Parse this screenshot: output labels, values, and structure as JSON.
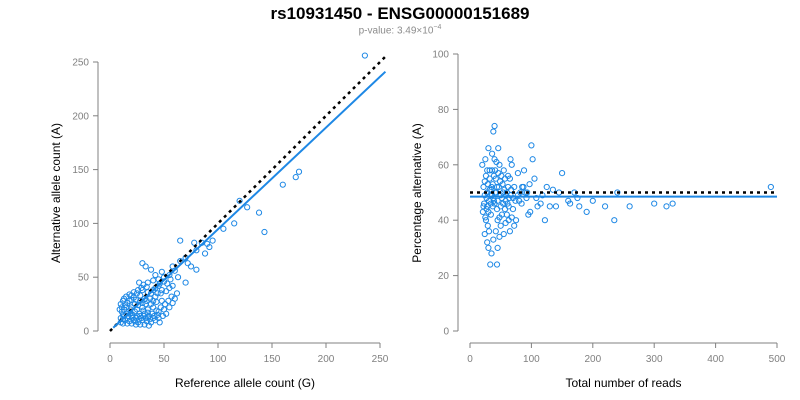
{
  "title": "rs10931450 - ENSG00000151689",
  "subtitle": {
    "prefix": "p-value: 3.49×10",
    "exponent": "−4"
  },
  "colors": {
    "series": "#1e88e5",
    "axis": "#808080",
    "reference_line": "#000000"
  },
  "chart_data": [
    {
      "type": "scatter",
      "xlabel": "Reference allele count (G)",
      "ylabel": "Alternative allele count (A)",
      "xlim": [
        0,
        250
      ],
      "ylim": [
        0,
        250
      ],
      "xticks": [
        "0",
        "50",
        "100",
        "150",
        "200",
        "250"
      ],
      "yticks": [
        "0",
        "50",
        "100",
        "150",
        "200",
        "250"
      ],
      "reference_line": {
        "style": "dotted",
        "color": "#000000",
        "from": [
          0,
          0
        ],
        "to": [
          255,
          255
        ]
      },
      "fit_line": {
        "style": "solid",
        "color": "#1e88e5",
        "from": [
          3,
          3
        ],
        "to": [
          255,
          241
        ]
      },
      "points": [
        [
          236,
          256
        ],
        [
          175,
          148
        ],
        [
          172,
          143
        ],
        [
          160,
          136
        ],
        [
          120,
          121
        ],
        [
          127,
          115
        ],
        [
          138,
          110
        ],
        [
          115,
          100
        ],
        [
          143,
          92
        ],
        [
          105,
          95
        ],
        [
          90,
          81
        ],
        [
          95,
          84
        ],
        [
          85,
          82
        ],
        [
          92,
          78
        ],
        [
          78,
          82
        ],
        [
          65,
          84
        ],
        [
          80,
          75
        ],
        [
          88,
          72
        ],
        [
          70,
          68
        ],
        [
          72,
          63
        ],
        [
          65,
          65
        ],
        [
          58,
          60
        ],
        [
          60,
          56
        ],
        [
          55,
          52
        ],
        [
          50,
          50
        ],
        [
          45,
          48
        ],
        [
          40,
          47
        ],
        [
          35,
          45
        ],
        [
          30,
          63
        ],
        [
          33,
          60
        ],
        [
          38,
          57
        ],
        [
          42,
          52
        ],
        [
          48,
          55
        ],
        [
          63,
          50
        ],
        [
          75,
          60
        ],
        [
          80,
          57
        ],
        [
          70,
          45
        ],
        [
          58,
          42
        ],
        [
          55,
          40
        ],
        [
          45,
          42
        ],
        [
          40,
          38
        ],
        [
          35,
          36
        ],
        [
          30,
          38
        ],
        [
          25,
          35
        ],
        [
          20,
          33
        ],
        [
          22,
          31
        ],
        [
          28,
          33
        ],
        [
          32,
          30
        ],
        [
          37,
          30
        ],
        [
          42,
          32
        ],
        [
          47,
          35
        ],
        [
          52,
          37
        ],
        [
          33,
          25
        ],
        [
          38,
          25
        ],
        [
          43,
          27
        ],
        [
          48,
          28
        ],
        [
          28,
          28
        ],
        [
          23,
          25
        ],
        [
          18,
          28
        ],
        [
          15,
          22
        ],
        [
          12,
          28
        ],
        [
          10,
          25
        ],
        [
          13,
          20
        ],
        [
          17,
          18
        ],
        [
          20,
          22
        ],
        [
          25,
          20
        ],
        [
          30,
          22
        ],
        [
          35,
          20
        ],
        [
          40,
          22
        ],
        [
          45,
          18
        ],
        [
          50,
          20
        ],
        [
          28,
          14
        ],
        [
          32,
          16
        ],
        [
          36,
          14
        ],
        [
          40,
          12
        ],
        [
          44,
          15
        ],
        [
          24,
          12
        ],
        [
          20,
          14
        ],
        [
          16,
          12
        ],
        [
          12,
          15
        ],
        [
          10,
          12
        ],
        [
          14,
          10
        ],
        [
          18,
          9
        ],
        [
          22,
          10
        ],
        [
          26,
          8
        ],
        [
          30,
          10
        ],
        [
          34,
          9
        ],
        [
          38,
          8
        ],
        [
          42,
          10
        ],
        [
          46,
          8
        ],
        [
          15,
          16
        ],
        [
          19,
          17
        ],
        [
          23,
          18
        ],
        [
          27,
          16
        ],
        [
          31,
          19
        ],
        [
          35,
          17
        ],
        [
          11,
          18
        ],
        [
          13,
          14
        ],
        [
          17,
          14
        ],
        [
          21,
          15
        ],
        [
          25,
          14
        ],
        [
          29,
          12
        ],
        [
          33,
          12
        ],
        [
          37,
          11
        ],
        [
          41,
          14
        ],
        [
          45,
          12
        ],
        [
          49,
          14
        ],
        [
          52,
          16
        ],
        [
          55,
          22
        ],
        [
          58,
          26
        ],
        [
          60,
          30
        ],
        [
          62,
          35
        ],
        [
          10,
          8
        ],
        [
          12,
          7
        ],
        [
          16,
          7
        ],
        [
          20,
          7
        ],
        [
          24,
          6
        ],
        [
          28,
          6
        ],
        [
          32,
          6
        ],
        [
          36,
          5
        ],
        [
          14,
          24
        ],
        [
          16,
          26
        ],
        [
          20,
          29
        ],
        [
          24,
          29
        ],
        [
          26,
          24
        ],
        [
          30,
          26
        ],
        [
          34,
          28
        ],
        [
          38,
          35
        ],
        [
          42,
          40
        ],
        [
          46,
          44
        ],
        [
          50,
          46
        ],
        [
          53,
          44
        ],
        [
          56,
          48
        ],
        [
          48,
          38
        ],
        [
          44,
          35
        ],
        [
          40,
          28
        ],
        [
          9,
          20
        ],
        [
          11,
          22
        ],
        [
          13,
          30
        ],
        [
          15,
          32
        ],
        [
          18,
          34
        ],
        [
          22,
          36
        ],
        [
          26,
          38
        ],
        [
          29,
          40
        ],
        [
          31,
          43
        ],
        [
          34,
          41
        ],
        [
          27,
          45
        ],
        [
          19,
          20
        ],
        [
          21,
          12
        ],
        [
          23,
          9
        ],
        [
          27,
          11
        ],
        [
          31,
          14
        ],
        [
          35,
          13
        ],
        [
          39,
          16
        ],
        [
          43,
          19
        ],
        [
          47,
          22
        ],
        [
          51,
          25
        ],
        [
          54,
          28
        ],
        [
          57,
          32
        ],
        [
          12,
          11
        ]
      ]
    },
    {
      "type": "scatter",
      "xlabel": "Total number of reads",
      "ylabel": "Percentage alternative (A)",
      "xlim": [
        0,
        500
      ],
      "ylim": [
        0,
        100
      ],
      "xticks": [
        "0",
        "100",
        "200",
        "300",
        "400",
        "500"
      ],
      "yticks": [
        "0",
        "20",
        "40",
        "60",
        "80",
        "100"
      ],
      "reference_line": {
        "style": "dotted",
        "color": "#000000",
        "y": 50
      },
      "fit_line": {
        "style": "solid",
        "color": "#1e88e5",
        "y": 48.5
      },
      "points": [
        [
          490,
          52
        ],
        [
          330,
          46
        ],
        [
          320,
          45
        ],
        [
          300,
          46
        ],
        [
          260,
          45
        ],
        [
          240,
          50
        ],
        [
          235,
          40
        ],
        [
          220,
          45
        ],
        [
          200,
          47
        ],
        [
          190,
          43
        ],
        [
          178,
          45
        ],
        [
          175,
          48
        ],
        [
          170,
          50
        ],
        [
          163,
          46
        ],
        [
          160,
          47
        ],
        [
          150,
          57
        ],
        [
          145,
          50
        ],
        [
          140,
          45
        ],
        [
          130,
          45
        ],
        [
          125,
          52
        ],
        [
          122,
          40
        ],
        [
          115,
          46
        ],
        [
          110,
          45
        ],
        [
          105,
          55
        ],
        [
          100,
          67
        ],
        [
          102,
          62
        ],
        [
          98,
          43
        ],
        [
          97,
          53
        ],
        [
          95,
          42
        ],
        [
          92,
          48
        ],
        [
          90,
          50
        ],
        [
          88,
          58
        ],
        [
          85,
          52
        ],
        [
          82,
          50
        ],
        [
          80,
          47
        ],
        [
          78,
          57
        ],
        [
          75,
          40
        ],
        [
          72,
          52
        ],
        [
          70,
          48
        ],
        [
          68,
          60
        ],
        [
          66,
          62
        ],
        [
          65,
          55
        ],
        [
          63,
          45
        ],
        [
          62,
          52
        ],
        [
          60,
          50
        ],
        [
          58,
          47
        ],
        [
          57,
          55
        ],
        [
          55,
          58
        ],
        [
          54,
          50
        ],
        [
          52,
          48
        ],
        [
          50,
          45
        ],
        [
          48,
          41
        ],
        [
          46,
          66
        ],
        [
          45,
          40
        ],
        [
          44,
          24
        ],
        [
          43,
          61
        ],
        [
          42,
          55
        ],
        [
          41,
          50
        ],
        [
          40,
          74
        ],
        [
          39,
          47
        ],
        [
          38,
          72
        ],
        [
          37,
          45
        ],
        [
          36,
          64
        ],
        [
          35,
          52
        ],
        [
          34,
          42
        ],
        [
          33,
          24
        ],
        [
          32,
          58
        ],
        [
          31,
          36
        ],
        [
          30,
          30
        ],
        [
          29,
          38
        ],
        [
          28,
          50
        ],
        [
          27,
          44
        ],
        [
          26,
          56
        ],
        [
          25,
          62
        ],
        [
          24,
          35
        ],
        [
          23,
          46
        ],
        [
          22,
          52
        ],
        [
          21,
          43
        ],
        [
          20,
          60
        ],
        [
          35,
          28
        ],
        [
          30,
          66
        ],
        [
          28,
          32
        ],
        [
          38,
          33
        ],
        [
          42,
          36
        ],
        [
          45,
          30
        ],
        [
          48,
          34
        ],
        [
          50,
          38
        ],
        [
          52,
          42
        ],
        [
          55,
          35
        ],
        [
          58,
          39
        ],
        [
          60,
          42
        ],
        [
          63,
          40
        ],
        [
          65,
          36
        ],
        [
          68,
          41
        ],
        [
          70,
          44
        ],
        [
          72,
          38
        ],
        [
          25,
          41
        ],
        [
          27,
          48
        ],
        [
          29,
          53
        ],
        [
          31,
          47
        ],
        [
          33,
          49
        ],
        [
          35,
          51
        ],
        [
          37,
          53
        ],
        [
          39,
          56
        ],
        [
          41,
          58
        ],
        [
          43,
          50
        ],
        [
          45,
          47
        ],
        [
          47,
          52
        ],
        [
          49,
          54
        ],
        [
          51,
          56
        ],
        [
          53,
          53
        ],
        [
          56,
          51
        ],
        [
          59,
          49
        ],
        [
          61,
          46
        ],
        [
          64,
          48
        ],
        [
          67,
          51
        ],
        [
          40,
          46
        ],
        [
          36,
          49
        ],
        [
          32,
          51
        ],
        [
          28,
          45
        ],
        [
          24,
          49
        ],
        [
          22,
          45
        ],
        [
          26,
          40
        ],
        [
          30,
          43
        ],
        [
          34,
          46
        ],
        [
          38,
          48
        ],
        [
          44,
          44
        ],
        [
          46,
          57
        ],
        [
          48,
          60
        ],
        [
          36,
          58
        ],
        [
          32,
          55
        ],
        [
          28,
          58
        ],
        [
          24,
          54
        ],
        [
          40,
          62
        ],
        [
          44,
          52
        ],
        [
          50,
          49
        ],
        [
          54,
          46
        ],
        [
          57,
          44
        ],
        [
          62,
          56
        ],
        [
          66,
          49
        ],
        [
          74,
          47
        ],
        [
          78,
          49
        ],
        [
          84,
          46
        ],
        [
          87,
          52
        ],
        [
          93,
          50
        ],
        [
          108,
          48
        ],
        [
          118,
          49
        ],
        [
          135,
          51
        ]
      ]
    }
  ]
}
